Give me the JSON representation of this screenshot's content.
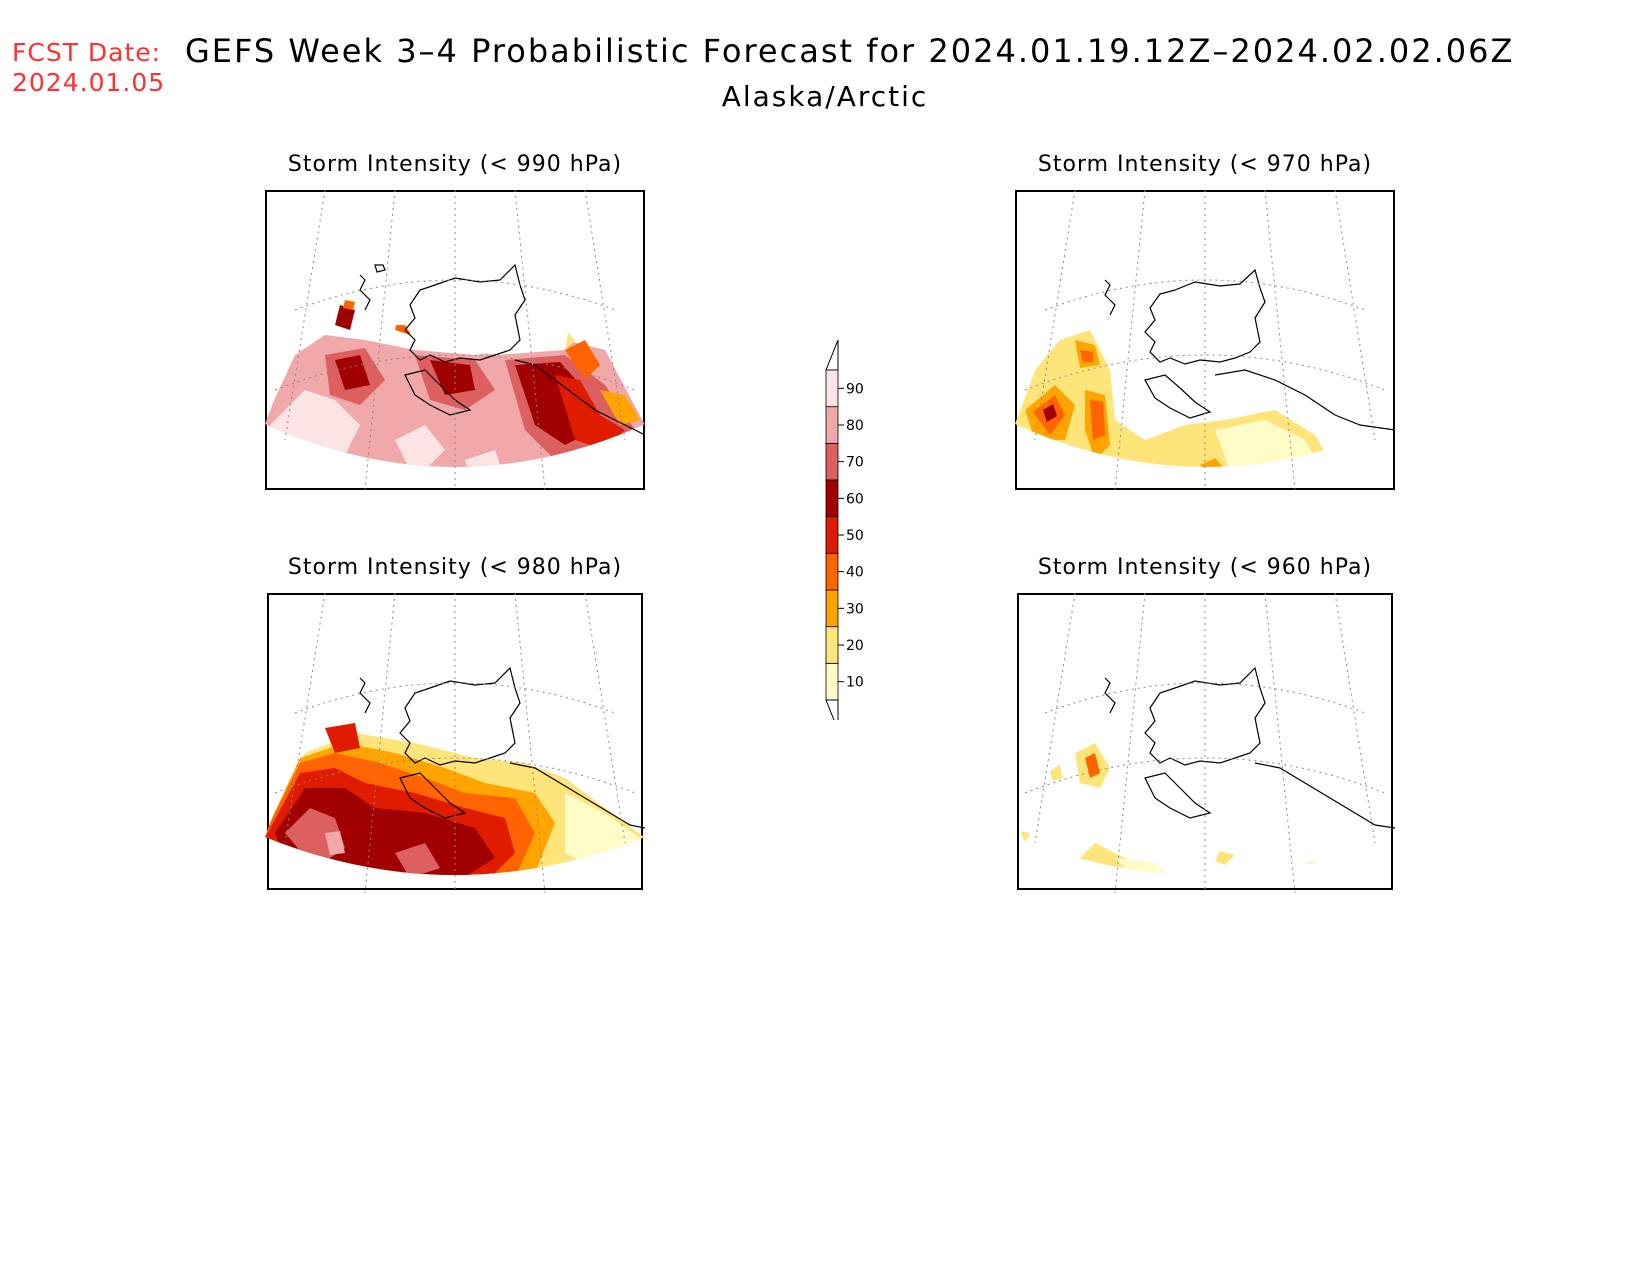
{
  "header": {
    "fcst_label": "FCST Date:",
    "fcst_date": "2024.01.05",
    "title": "GEFS Week 3–4 Probabilistic Forecast for 2024.01.19.12Z–2024.02.02.06Z",
    "subtitle": "Alaska/Arctic"
  },
  "panels": [
    {
      "title": "Storm Intensity (< 990 hPa)",
      "threshold_hpa": 990
    },
    {
      "title": "Storm Intensity (< 970 hPa)",
      "threshold_hpa": 970
    },
    {
      "title": "Storm Intensity (< 980 hPa)",
      "threshold_hpa": 980
    },
    {
      "title": "Storm Intensity (< 960 hPa)",
      "threshold_hpa": 960
    }
  ],
  "legend": {
    "levels": [
      "10",
      "20",
      "30",
      "40",
      "50",
      "60",
      "70",
      "80",
      "90"
    ],
    "colors": [
      "#fffcc8",
      "#ffe47a",
      "#ffa400",
      "#ff6400",
      "#e01c00",
      "#a00000",
      "#dd6060",
      "#f0a8a8",
      "#fce4e4"
    ]
  }
}
